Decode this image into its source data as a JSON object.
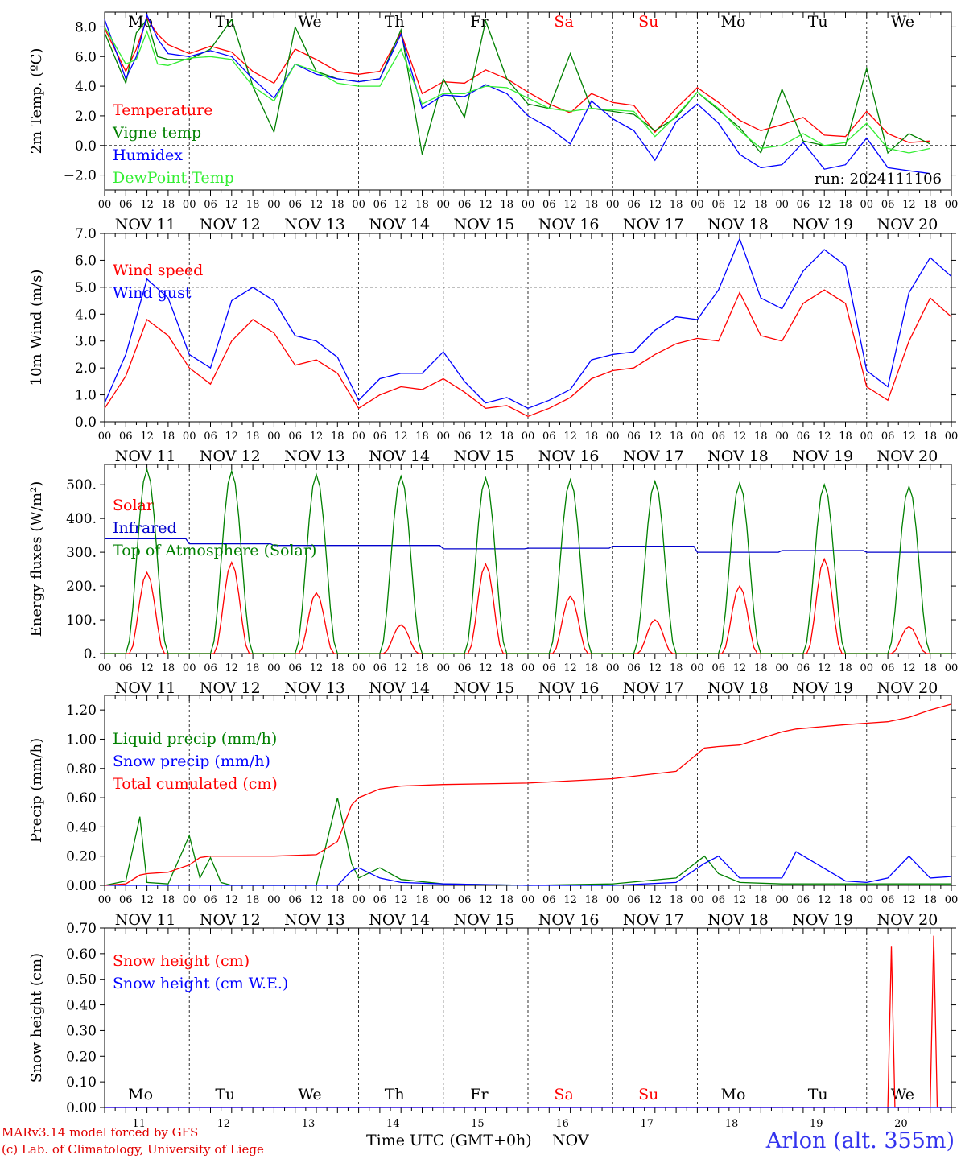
{
  "footer": {
    "credit_line1": "MARv3.14 model forced by GFS",
    "credit_line2": "(c) Lab. of Climatology, University of Liege",
    "xlabel": "Time UTC (GMT+0h)",
    "month": "NOV",
    "station": "Arlon (alt. 355m)"
  },
  "chart_data": [
    {
      "type": "line",
      "id": "temperature",
      "ylabel": "2m Temp. (ºC)",
      "ylim": [
        -3,
        9
      ],
      "yticks": [
        -2,
        0,
        2,
        4,
        6,
        8
      ],
      "ytick_labels": [
        "−2.0",
        "0.0",
        "2.0",
        "4.0",
        "6.0",
        "8.0"
      ],
      "hline": 0,
      "day_labels_top": [
        "Mo",
        "Tu",
        "We",
        "Th",
        "Fr",
        "Sa",
        "Su",
        "Mo",
        "Tu",
        "We"
      ],
      "annotation": "run: 2024111106",
      "x_hours": [
        0,
        6,
        9,
        12,
        15,
        18,
        24,
        30,
        36,
        42,
        48,
        54,
        60,
        66,
        72,
        78,
        84,
        90,
        96,
        102,
        108,
        114,
        120,
        126,
        132,
        138,
        144,
        150,
        156,
        162,
        168,
        174,
        180,
        186,
        192,
        198,
        204,
        210,
        216,
        222,
        228,
        234
      ],
      "series": [
        {
          "name": "Temperature",
          "color": "#ff0000",
          "values": [
            7.9,
            5.0,
            6.5,
            8.6,
            7.5,
            6.8,
            6.2,
            6.7,
            6.3,
            5.0,
            4.2,
            6.5,
            5.8,
            5.0,
            4.8,
            5.0,
            7.6,
            3.5,
            4.3,
            4.2,
            5.1,
            4.5,
            3.6,
            2.8,
            2.2,
            3.5,
            2.9,
            2.7,
            0.9,
            2.5,
            3.9,
            2.9,
            1.7,
            1.0,
            1.4,
            1.9,
            0.7,
            0.6,
            2.3,
            0.8,
            0.2,
            0.3
          ]
        },
        {
          "name": "Vigne temp",
          "color": "#008000",
          "values": [
            7.6,
            4.2,
            7.6,
            8.5,
            6.0,
            5.8,
            5.8,
            6.5,
            8.5,
            4.0,
            0.9,
            8.0,
            5.0,
            4.5,
            4.3,
            4.5,
            7.8,
            -0.6,
            4.5,
            1.9,
            8.4,
            4.5,
            2.8,
            2.5,
            6.2,
            2.5,
            2.3,
            2.1,
            1.0,
            1.9,
            3.6,
            2.4,
            1.2,
            -0.5,
            3.8,
            0.3,
            0.0,
            0.0,
            5.2,
            -0.5,
            0.8,
            0.1
          ]
        },
        {
          "name": "Humidex",
          "color": "#0000ff",
          "values": [
            8.5,
            4.5,
            6.0,
            8.8,
            7.2,
            6.2,
            6.0,
            6.4,
            6.0,
            4.5,
            3.2,
            5.5,
            4.8,
            4.5,
            4.3,
            4.5,
            7.5,
            2.5,
            3.4,
            3.3,
            4.1,
            3.5,
            2.0,
            1.2,
            0.1,
            3.0,
            1.8,
            1.0,
            -1.0,
            1.6,
            2.8,
            1.5,
            -0.6,
            -1.5,
            -1.3,
            0.2,
            -1.6,
            -1.3,
            0.5,
            -1.5,
            -1.7,
            -1.9
          ]
        },
        {
          "name": "DewPoint Temp",
          "color": "#33ee33",
          "values": [
            8.0,
            5.5,
            5.8,
            7.7,
            5.5,
            5.4,
            5.9,
            6.0,
            5.8,
            4.0,
            3.0,
            5.5,
            5.0,
            4.2,
            4.0,
            4.0,
            6.5,
            2.8,
            3.5,
            3.5,
            4.0,
            3.9,
            3.2,
            2.5,
            2.3,
            2.5,
            2.4,
            2.3,
            0.6,
            2.0,
            3.6,
            2.5,
            1.0,
            -0.2,
            0.0,
            0.8,
            0.0,
            0.2,
            1.5,
            -0.2,
            -0.5,
            -0.2
          ]
        }
      ]
    },
    {
      "type": "line",
      "id": "wind",
      "ylabel": "10m Wind (m/s)",
      "ylim": [
        0,
        7
      ],
      "yticks": [
        0,
        1,
        2,
        3,
        4,
        5,
        6,
        7
      ],
      "ytick_labels": [
        "0.0",
        "1.0",
        "2.0",
        "3.0",
        "4.0",
        "5.0",
        "6.0",
        "7.0"
      ],
      "hline": 5,
      "x_hours": [
        0,
        6,
        12,
        18,
        24,
        30,
        36,
        42,
        48,
        54,
        60,
        66,
        72,
        78,
        84,
        90,
        96,
        102,
        108,
        114,
        120,
        126,
        132,
        138,
        144,
        150,
        156,
        162,
        168,
        174,
        180,
        186,
        192,
        198,
        204,
        210,
        216,
        222,
        228,
        234,
        240
      ],
      "series": [
        {
          "name": "Wind speed",
          "color": "#ff0000",
          "values": [
            0.5,
            1.7,
            3.8,
            3.2,
            2.0,
            1.4,
            3.0,
            3.8,
            3.3,
            2.1,
            2.3,
            1.8,
            0.5,
            1.0,
            1.3,
            1.2,
            1.6,
            1.1,
            0.5,
            0.6,
            0.2,
            0.5,
            0.9,
            1.6,
            1.9,
            2.0,
            2.5,
            2.9,
            3.1,
            3.0,
            4.8,
            3.2,
            3.0,
            4.4,
            4.9,
            4.4,
            1.3,
            0.8,
            3.0,
            4.6,
            3.9
          ]
        },
        {
          "name": "Wind gust",
          "color": "#0000ff",
          "values": [
            0.7,
            2.5,
            5.3,
            4.6,
            2.5,
            2.0,
            4.5,
            5.0,
            4.5,
            3.2,
            3.0,
            2.4,
            0.8,
            1.6,
            1.8,
            1.8,
            2.6,
            1.5,
            0.7,
            0.9,
            0.5,
            0.8,
            1.2,
            2.3,
            2.5,
            2.6,
            3.4,
            3.9,
            3.8,
            4.9,
            6.8,
            4.6,
            4.2,
            5.6,
            6.4,
            5.8,
            1.9,
            1.3,
            4.8,
            6.1,
            5.4
          ]
        }
      ]
    },
    {
      "type": "line",
      "id": "energy",
      "ylabel": "Energy fluxes (W/m²)",
      "ylim": [
        0,
        560
      ],
      "yticks": [
        0,
        100,
        200,
        300,
        400,
        500
      ],
      "ytick_labels": [
        "0.",
        "100.",
        "200.",
        "300.",
        "400.",
        "500."
      ],
      "hline": null,
      "x_hours": [
        0,
        24,
        48,
        72,
        96,
        120,
        144,
        168,
        192,
        216
      ],
      "series": [
        {
          "name": "Solar",
          "color": "#ff0000",
          "peaks": [
            240,
            270,
            180,
            85,
            265,
            170,
            100,
            200,
            280,
            80
          ]
        },
        {
          "name": "Infrared",
          "color": "#0000cc",
          "values": [
            340,
            325,
            320,
            320,
            310,
            312,
            318,
            300,
            305,
            300
          ]
        },
        {
          "name": "Top of Atmosphere (Solar)",
          "color": "#008000",
          "peaks": [
            545,
            540,
            530,
            525,
            520,
            515,
            510,
            505,
            500,
            495
          ]
        }
      ]
    },
    {
      "type": "line",
      "id": "precip",
      "ylabel": "Precip (mm/h)",
      "ylim": [
        0,
        1.3
      ],
      "yticks": [
        0,
        0.2,
        0.4,
        0.6,
        0.8,
        1.0,
        1.2
      ],
      "ytick_labels": [
        "0.00",
        "0.20",
        "0.40",
        "0.60",
        "0.80",
        "1.00",
        "1.20"
      ],
      "hline": null,
      "x_hours": [
        0,
        6,
        10,
        12,
        18,
        24,
        27,
        30,
        33,
        36,
        48,
        60,
        66,
        70,
        72,
        78,
        84,
        96,
        120,
        144,
        162,
        170,
        174,
        180,
        192,
        196,
        210,
        216,
        222,
        228,
        234,
        240
      ],
      "series": [
        {
          "name": "Liquid precip (mm/h)",
          "color": "#008000",
          "values": [
            0.0,
            0.03,
            0.47,
            0.02,
            0.01,
            0.34,
            0.05,
            0.19,
            0.02,
            0.0,
            0.0,
            0.0,
            0.6,
            0.15,
            0.05,
            0.12,
            0.04,
            0.01,
            0.0,
            0.01,
            0.05,
            0.2,
            0.08,
            0.02,
            0.01,
            0.01,
            0.01,
            0.01,
            0.01,
            0.01,
            0.01,
            0.01
          ]
        },
        {
          "name": "Snow precip (mm/h)",
          "color": "#0000ff",
          "values": [
            0.0,
            0.0,
            0.0,
            0.0,
            0.0,
            0.0,
            0.0,
            0.0,
            0.0,
            0.0,
            0.0,
            0.0,
            0.0,
            0.1,
            0.12,
            0.05,
            0.02,
            0.01,
            0.0,
            0.0,
            0.02,
            0.15,
            0.2,
            0.05,
            0.05,
            0.23,
            0.03,
            0.02,
            0.05,
            0.2,
            0.05,
            0.06
          ]
        },
        {
          "name": "Total cumulated (cm)",
          "color": "#ff0000",
          "values": [
            0.0,
            0.01,
            0.07,
            0.08,
            0.09,
            0.14,
            0.19,
            0.2,
            0.2,
            0.2,
            0.2,
            0.21,
            0.3,
            0.55,
            0.6,
            0.66,
            0.68,
            0.69,
            0.7,
            0.73,
            0.78,
            0.94,
            0.95,
            0.96,
            1.05,
            1.07,
            1.1,
            1.11,
            1.12,
            1.15,
            1.2,
            1.24
          ]
        }
      ]
    },
    {
      "type": "line",
      "id": "snow",
      "ylabel": "Snow height (cm)",
      "ylim": [
        0,
        0.7
      ],
      "yticks": [
        0,
        0.1,
        0.2,
        0.3,
        0.4,
        0.5,
        0.6,
        0.7
      ],
      "ytick_labels": [
        "0.00",
        "0.10",
        "0.20",
        "0.30",
        "0.40",
        "0.50",
        "0.60",
        "0.70"
      ],
      "hline": null,
      "day_labels_bottom": [
        "Mo",
        "Tu",
        "We",
        "Th",
        "Fr",
        "Sa",
        "Su",
        "Mo",
        "Tu",
        "We"
      ],
      "day_numbers": [
        "11",
        "12",
        "13",
        "14",
        "15",
        "16",
        "17",
        "18",
        "19",
        "20"
      ],
      "x_hours": [
        0,
        222,
        223,
        224,
        225,
        234,
        235,
        236,
        240
      ],
      "series": [
        {
          "name": "Snow height (cm)",
          "color": "#ff0000",
          "values": [
            0,
            0,
            0.63,
            0,
            0,
            0,
            0.67,
            0,
            0
          ]
        },
        {
          "name": "Snow height (cm W.E.)",
          "color": "#0000ff",
          "values": [
            0,
            0,
            0,
            0,
            0,
            0,
            0,
            0,
            0
          ]
        }
      ]
    }
  ],
  "x_axis": {
    "hour_ticks": [
      "00",
      "06",
      "12",
      "18"
    ],
    "date_labels": [
      "NOV 11",
      "NOV 12",
      "NOV 13",
      "NOV 14",
      "NOV 15",
      "NOV 16",
      "NOV 17",
      "NOV 18",
      "NOV 19",
      "NOV 20"
    ],
    "weekend_color": "#ff0000",
    "weekday_color": "#000000",
    "weekend_index": [
      5,
      6
    ]
  }
}
